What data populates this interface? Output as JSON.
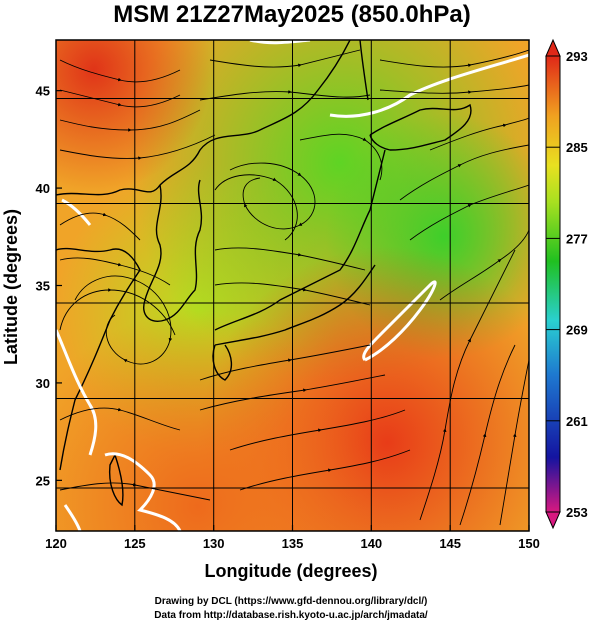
{
  "title": "MSM 21Z27May2025 (850.0hPa)",
  "xlabel": "Longitude (degrees)",
  "ylabel": "Latitude  (degrees)",
  "xticks": [
    "120",
    "125",
    "130",
    "135",
    "140",
    "145",
    "150"
  ],
  "yticks": [
    "25",
    "30",
    "35",
    "40",
    "45"
  ],
  "colorbar": {
    "ticks": [
      "293",
      "285",
      "277",
      "269",
      "261",
      "253"
    ],
    "colors": [
      "#d81880",
      "#1414a0",
      "#1e78d0",
      "#2ad0d0",
      "#20c020",
      "#a8e020",
      "#e8e020",
      "#f0a020",
      "#e02818"
    ]
  },
  "credits": {
    "line1": "Drawing by DCL (https://www.gfd-dennou.org/library/dcl/)",
    "line2": "Data from http://database.rish.kyoto-u.ac.jp/arch/jmadata/"
  },
  "chart_data": {
    "type": "heatmap",
    "title": "MSM 21Z27May2025 (850.0hPa)",
    "xlabel": "Longitude (degrees)",
    "ylabel": "Latitude  (degrees)",
    "xlim": [
      120,
      150
    ],
    "ylim": [
      22.4,
      47.6
    ],
    "colorbar_range": [
      253,
      293
    ],
    "colorbar_ticks": [
      293,
      285,
      277,
      269,
      261,
      253
    ],
    "grid": true
  }
}
